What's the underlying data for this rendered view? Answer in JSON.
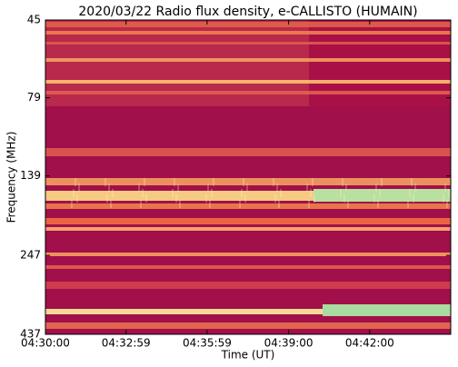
{
  "chart_data": {
    "type": "spectrogram",
    "title": "2020/03/22  Radio flux density, e-CALLISTO (HUMAIN)",
    "x_label": "Time (UT)",
    "y_label": "Frequency (MHz)",
    "xlim": [
      "04:30:00",
      "04:45:00"
    ],
    "xticks": [
      "04:30:00",
      "04:32:59",
      "04:35:59",
      "04:39:00",
      "04:42:00"
    ],
    "ylim": [
      437,
      45
    ],
    "yticks": [
      45,
      79,
      139,
      247,
      437
    ],
    "y_scale": "log"
  }
}
